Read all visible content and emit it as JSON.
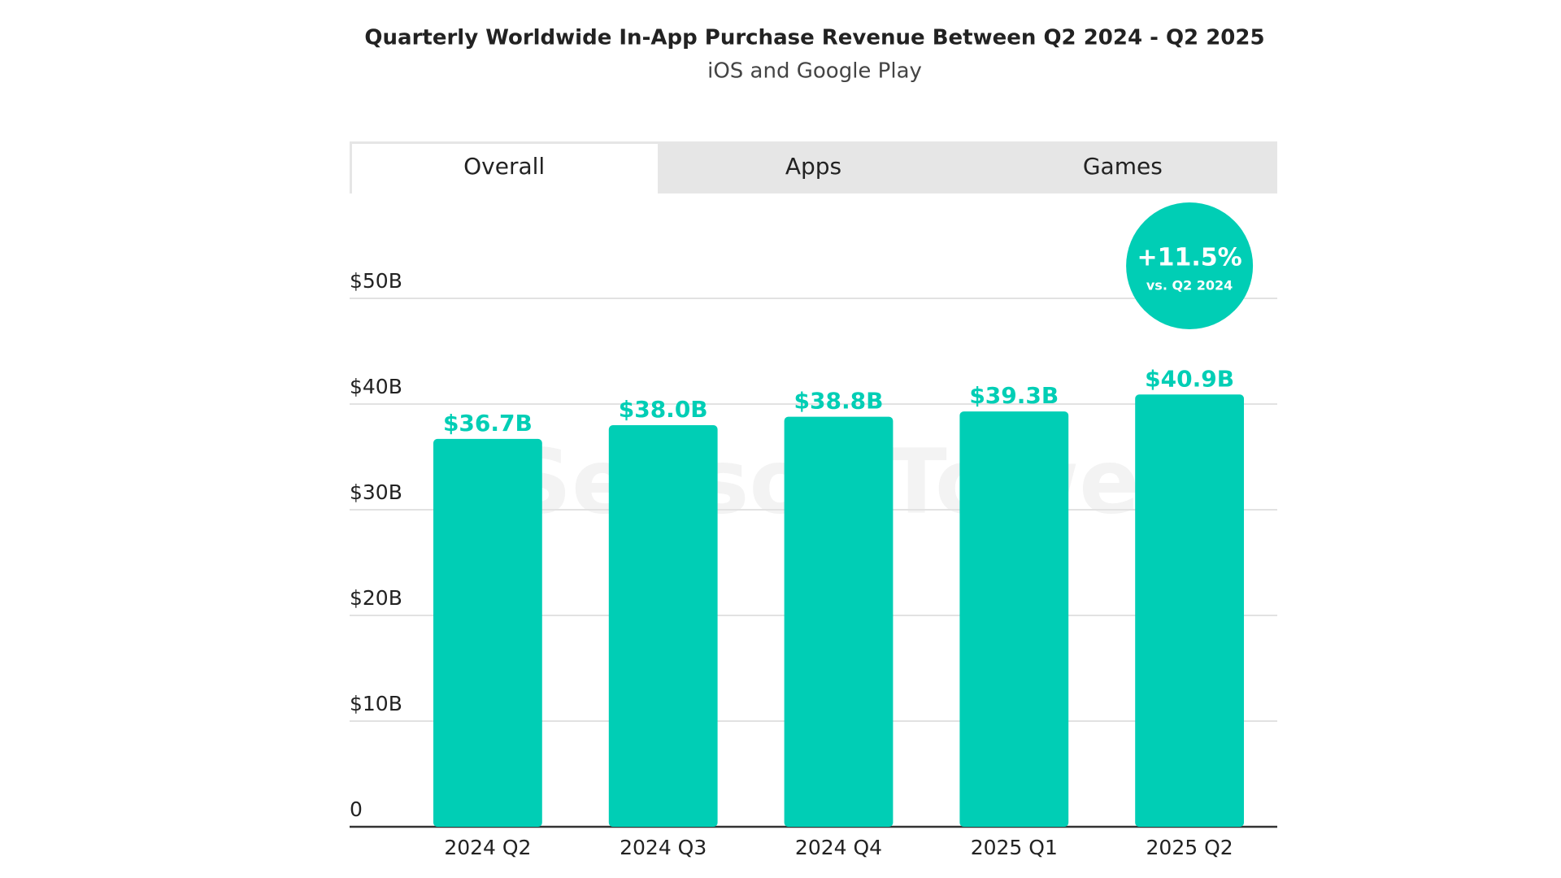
{
  "chart_data": {
    "type": "bar",
    "title": "Quarterly Worldwide In-App Purchase Revenue Between Q2 2024 - Q2 2025",
    "subtitle": "iOS and Google Play",
    "tabs": [
      "Overall",
      "Apps",
      "Games"
    ],
    "badge": {
      "text": "+11.5%",
      "subtext": "vs. Q2 2024"
    },
    "watermark": "Sensor Tower",
    "categories": [
      "2024 Q2",
      "2024 Q3",
      "2024 Q4",
      "2025 Q1",
      "2025 Q2"
    ],
    "values": [
      36.7,
      38.0,
      38.8,
      39.3,
      40.9
    ],
    "value_labels": [
      "$36.7B",
      "$38.0B",
      "$38.8B",
      "$39.3B",
      "$40.9B"
    ],
    "color": "#00ceb5",
    "ylim": [
      0,
      50
    ],
    "yticks": [
      0,
      {
        "value": 10,
        "label": "$10B"
      },
      {
        "value": 20,
        "label": "$20B"
      },
      {
        "value": 30,
        "label": "$30B"
      },
      {
        "value": 40,
        "label": "$40B"
      },
      {
        "value": 50,
        "label": "$50B"
      }
    ],
    "grid": true
  }
}
